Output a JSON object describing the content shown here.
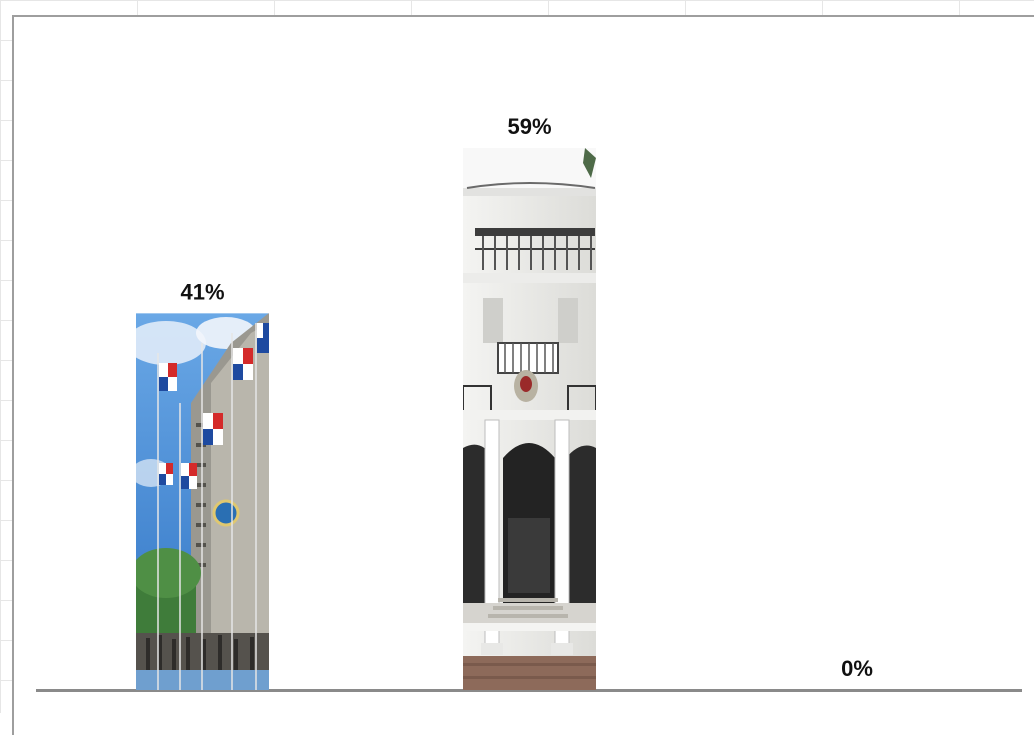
{
  "chart_data": {
    "type": "bar",
    "categories": [
      "",
      "",
      ""
    ],
    "values": [
      41,
      59,
      0
    ],
    "data_labels": [
      "41%",
      "59%",
      "0%"
    ],
    "title": "",
    "xlabel": "",
    "ylabel": "",
    "ylim": [
      0,
      65
    ],
    "grid": false,
    "legend": "none",
    "bar_fills": [
      "photo-flags-building",
      "photo-colonial-palace",
      "none"
    ]
  },
  "colors": {
    "axis": "#8a8a8a",
    "frame": "#9e9e9e",
    "sky": "#3d87d6",
    "flag_red": "#d42a2a",
    "flag_blue": "#1e4aa0"
  }
}
